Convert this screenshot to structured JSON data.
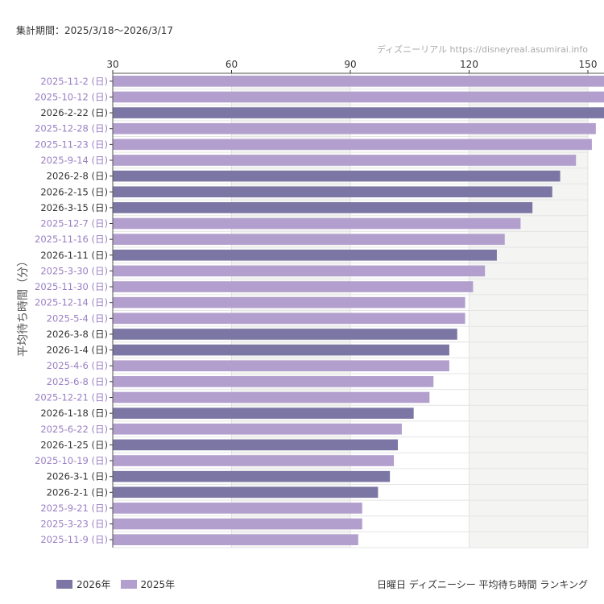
{
  "header": {
    "period": "集計期間：2025/3/18～2026/3/17",
    "credit": "ディズニーリアル https://disneyreal.asumirai.info"
  },
  "caption": "日曜日 ディズニーシー 平均待ち時間 ランキング",
  "colors": {
    "2026": "#7b76a3",
    "2025": "#b39fcd",
    "label2026": "#333333",
    "label2025": "#9a7fc4"
  },
  "chart_data": {
    "type": "bar",
    "orientation": "horizontal",
    "xlabel": "",
    "ylabel": "平均待ち時間（分）",
    "xlim": [
      30,
      154
    ],
    "xticks": [
      30,
      60,
      90,
      120,
      150
    ],
    "grid": true,
    "legend": "bottom-left",
    "legend_entries": [
      {
        "name": "2026年",
        "key": "2026"
      },
      {
        "name": "2025年",
        "key": "2025"
      }
    ],
    "categories": [
      "2025-11-2 (日)",
      "2025-10-12 (日)",
      "2026-2-22 (日)",
      "2025-12-28 (日)",
      "2025-11-23 (日)",
      "2025-9-14 (日)",
      "2026-2-8 (日)",
      "2026-2-15 (日)",
      "2026-3-15 (日)",
      "2025-12-7 (日)",
      "2025-11-16 (日)",
      "2026-1-11 (日)",
      "2025-3-30 (日)",
      "2025-11-30 (日)",
      "2025-12-14 (日)",
      "2025-5-4 (日)",
      "2026-3-8 (日)",
      "2026-1-4 (日)",
      "2025-4-6 (日)",
      "2025-6-8 (日)",
      "2025-12-21 (日)",
      "2026-1-18 (日)",
      "2025-6-22 (日)",
      "2026-1-25 (日)",
      "2025-10-19 (日)",
      "2026-3-1 (日)",
      "2026-2-1 (日)",
      "2025-9-21 (日)",
      "2025-3-23 (日)",
      "2025-11-9 (日)"
    ],
    "values": [
      158,
      157,
      155,
      152,
      151,
      147,
      143,
      141,
      136,
      133,
      129,
      127,
      124,
      121,
      119,
      119,
      117,
      115,
      115,
      111,
      110,
      106,
      103,
      102,
      101,
      100,
      97,
      93,
      93,
      92
    ]
  }
}
